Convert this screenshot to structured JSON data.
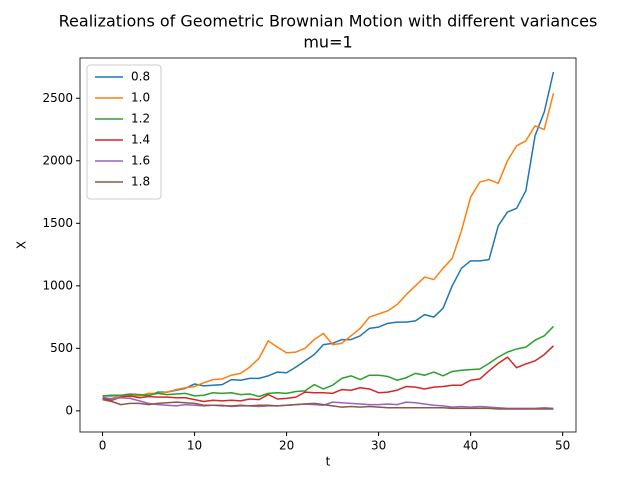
{
  "chart_data": {
    "type": "line",
    "title": "Realizations of Geometric Brownian Motion with different variances",
    "subtitle": "mu=1",
    "x_label": "t",
    "y_label": "X",
    "x": [
      0,
      1,
      2,
      3,
      4,
      5,
      6,
      7,
      8,
      9,
      10,
      11,
      12,
      13,
      14,
      15,
      16,
      17,
      18,
      19,
      20,
      21,
      22,
      23,
      24,
      25,
      26,
      27,
      28,
      29,
      30,
      31,
      32,
      33,
      34,
      35,
      36,
      37,
      38,
      39,
      40,
      41,
      42,
      43,
      44,
      45,
      46,
      47,
      48,
      49
    ],
    "series": [
      {
        "name": "0.8",
        "color": "#1f77b4",
        "values": [
          120,
          120,
          125,
          115,
          130,
          120,
          150,
          150,
          165,
          180,
          215,
          200,
          205,
          210,
          250,
          245,
          260,
          260,
          280,
          310,
          305,
          350,
          400,
          450,
          530,
          540,
          570,
          570,
          600,
          660,
          670,
          700,
          710,
          710,
          720,
          770,
          750,
          820,
          1000,
          1140,
          1200,
          1200,
          1210,
          1480,
          1590,
          1620,
          1760,
          2200,
          2390,
          2710
        ]
      },
      {
        "name": "1.0",
        "color": "#ff7f0e",
        "values": [
          90,
          100,
          120,
          130,
          120,
          140,
          140,
          150,
          170,
          185,
          195,
          225,
          250,
          255,
          285,
          300,
          350,
          420,
          560,
          510,
          465,
          470,
          500,
          570,
          620,
          530,
          540,
          600,
          660,
          750,
          775,
          800,
          850,
          930,
          1000,
          1070,
          1050,
          1140,
          1220,
          1440,
          1710,
          1830,
          1850,
          1820,
          2000,
          2120,
          2160,
          2280,
          2250,
          2540
        ]
      },
      {
        "name": "1.2",
        "color": "#2ca02c",
        "values": [
          120,
          125,
          125,
          135,
          130,
          125,
          140,
          130,
          135,
          140,
          120,
          125,
          145,
          140,
          145,
          130,
          135,
          115,
          140,
          145,
          140,
          155,
          160,
          210,
          175,
          205,
          260,
          280,
          250,
          285,
          285,
          275,
          245,
          265,
          300,
          285,
          310,
          280,
          315,
          325,
          330,
          335,
          380,
          430,
          470,
          495,
          510,
          565,
          600,
          675
        ]
      },
      {
        "name": "1.4",
        "color": "#d62728",
        "values": [
          100,
          85,
          110,
          120,
          105,
          115,
          110,
          110,
          105,
          105,
          90,
          75,
          85,
          80,
          85,
          80,
          95,
          90,
          130,
          95,
          100,
          110,
          150,
          145,
          145,
          140,
          170,
          165,
          185,
          175,
          145,
          150,
          165,
          195,
          190,
          175,
          190,
          195,
          205,
          205,
          245,
          255,
          320,
          380,
          430,
          345,
          375,
          400,
          450,
          520
        ]
      },
      {
        "name": "1.6",
        "color": "#9467bd",
        "values": [
          110,
          95,
          105,
          100,
          80,
          60,
          50,
          45,
          40,
          50,
          45,
          40,
          45,
          45,
          35,
          40,
          40,
          35,
          40,
          40,
          45,
          50,
          55,
          50,
          45,
          70,
          65,
          60,
          55,
          50,
          50,
          55,
          50,
          70,
          65,
          55,
          45,
          40,
          30,
          35,
          30,
          35,
          30,
          25,
          20,
          20,
          20,
          20,
          25,
          20
        ]
      },
      {
        "name": "1.8",
        "color": "#8c564b",
        "values": [
          90,
          75,
          50,
          60,
          60,
          50,
          60,
          65,
          70,
          65,
          60,
          45,
          45,
          40,
          40,
          45,
          40,
          45,
          45,
          40,
          45,
          50,
          55,
          60,
          50,
          40,
          30,
          35,
          30,
          35,
          30,
          25,
          25,
          25,
          25,
          25,
          25,
          25,
          20,
          20,
          20,
          20,
          20,
          15,
          15,
          15,
          15,
          15,
          15,
          15
        ]
      }
    ],
    "xlim": [
      -2.45,
      51.45
    ],
    "ylim": [
      -169,
      2822
    ],
    "xticks": [
      0,
      10,
      20,
      30,
      40,
      50
    ],
    "yticks": [
      0,
      500,
      1000,
      1500,
      2000,
      2500
    ],
    "legend": "upper left"
  }
}
